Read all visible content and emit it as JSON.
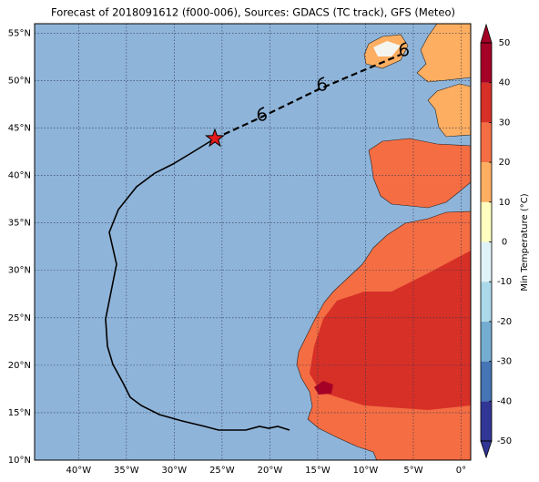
{
  "title": "Forecast of 2018091612 (f000-006), Sources: GDACS (TC track), GFS (Meteo)",
  "map": {
    "lonlim": [
      -44.6,
      1
    ],
    "latlim": [
      10,
      56
    ],
    "lon_ticks": [
      {
        "value": -40,
        "label": "40°W"
      },
      {
        "value": -35,
        "label": "35°W"
      },
      {
        "value": -30,
        "label": "30°W"
      },
      {
        "value": -25,
        "label": "25°W"
      },
      {
        "value": -20,
        "label": "20°W"
      },
      {
        "value": -15,
        "label": "15°W"
      },
      {
        "value": -10,
        "label": "10°W"
      },
      {
        "value": -5,
        "label": "5°W"
      },
      {
        "value": 0,
        "label": "0°"
      }
    ],
    "lat_ticks": [
      {
        "value": 10,
        "label": "10°N"
      },
      {
        "value": 15,
        "label": "15°N"
      },
      {
        "value": 20,
        "label": "20°N"
      },
      {
        "value": 25,
        "label": "25°N"
      },
      {
        "value": 30,
        "label": "30°N"
      },
      {
        "value": 35,
        "label": "35°N"
      },
      {
        "value": 40,
        "label": "40°N"
      },
      {
        "value": 45,
        "label": "45°N"
      },
      {
        "value": 50,
        "label": "50°N"
      },
      {
        "value": 55,
        "label": "55°N"
      }
    ]
  },
  "colorbar": {
    "label": "Min Temperature (°C)",
    "lim": [
      -50,
      50
    ],
    "ticks": [
      -50,
      -40,
      -30,
      -20,
      -10,
      0,
      10,
      20,
      30,
      40,
      50
    ],
    "colors": [
      "#313695",
      "#4575b4",
      "#74add1",
      "#abd9e9",
      "#e0f3f8",
      "#ffffbf",
      "#fdae61",
      "#f46d43",
      "#d73027",
      "#a50026"
    ]
  }
}
